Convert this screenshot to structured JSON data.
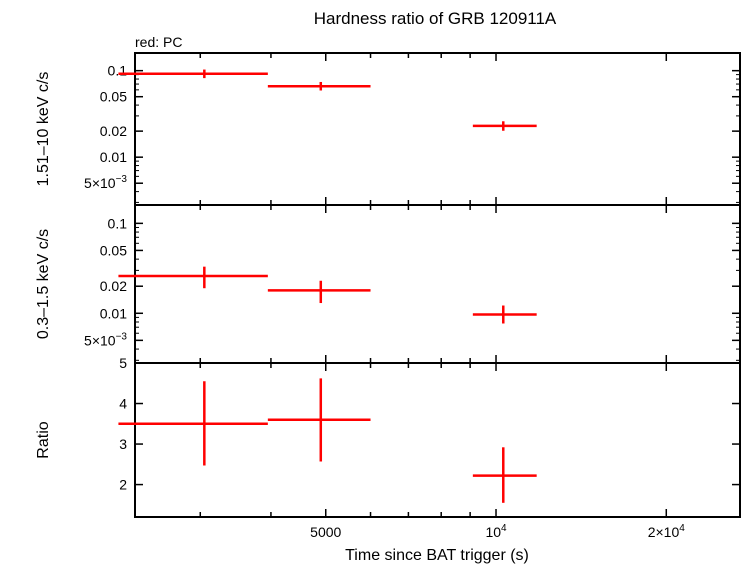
{
  "chart_data": {
    "type": "scatter",
    "title": "Hardness ratio of GRB 120911A",
    "subtitle": "red: PC",
    "xlabel": "Time since BAT trigger (s)",
    "xscale": "log",
    "xlim": [
      2300,
      27000
    ],
    "xticks": [
      {
        "value": 5000,
        "label": "5000"
      },
      {
        "value": 10000,
        "label": "10",
        "sup": "4"
      },
      {
        "value": 20000,
        "label": "2×10",
        "sup": "4"
      }
    ],
    "color": "#ff0000",
    "panels": [
      {
        "id": "hard",
        "ylabel": "1.51–10 keV c/s",
        "yscale": "log",
        "ylim": [
          0.0028,
          0.16
        ],
        "yticks": [
          {
            "value": 0.1,
            "label": "0.1"
          },
          {
            "value": 0.05,
            "label": "0.05"
          },
          {
            "value": 0.02,
            "label": "0.02"
          },
          {
            "value": 0.01,
            "label": "0.01"
          },
          {
            "value": 0.005,
            "label": "5×10",
            "sup": "−3"
          }
        ],
        "points": [
          {
            "x": 3050,
            "xlo": 2150,
            "xhi": 3950,
            "y": 0.092,
            "ylo": 0.082,
            "yhi": 0.103
          },
          {
            "x": 4900,
            "xlo": 3950,
            "xhi": 6000,
            "y": 0.066,
            "ylo": 0.059,
            "yhi": 0.074
          },
          {
            "x": 10300,
            "xlo": 9100,
            "xhi": 11800,
            "y": 0.023,
            "ylo": 0.0202,
            "yhi": 0.026
          }
        ]
      },
      {
        "id": "soft",
        "ylabel": "0.3–1.5 keV c/s",
        "yscale": "log",
        "ylim": [
          0.0028,
          0.16
        ],
        "yticks": [
          {
            "value": 0.1,
            "label": "0.1"
          },
          {
            "value": 0.05,
            "label": "0.05"
          },
          {
            "value": 0.02,
            "label": "0.02"
          },
          {
            "value": 0.01,
            "label": "0.01"
          },
          {
            "value": 0.005,
            "label": "5×10",
            "sup": "−3"
          }
        ],
        "points": [
          {
            "x": 3050,
            "xlo": 2150,
            "xhi": 3950,
            "y": 0.026,
            "ylo": 0.019,
            "yhi": 0.033
          },
          {
            "x": 4900,
            "xlo": 3950,
            "xhi": 6000,
            "y": 0.018,
            "ylo": 0.013,
            "yhi": 0.023
          },
          {
            "x": 10300,
            "xlo": 9100,
            "xhi": 11800,
            "y": 0.0097,
            "ylo": 0.0077,
            "yhi": 0.0122
          }
        ]
      },
      {
        "id": "ratio",
        "ylabel": "Ratio",
        "yscale": "linear",
        "ylim": [
          1.2,
          5.0
        ],
        "yticks": [
          {
            "value": 5,
            "label": "5"
          },
          {
            "value": 4,
            "label": "4"
          },
          {
            "value": 3,
            "label": "3"
          },
          {
            "value": 2,
            "label": "2"
          }
        ],
        "points": [
          {
            "x": 3050,
            "xlo": 2150,
            "xhi": 3950,
            "y": 3.5,
            "ylo": 2.47,
            "yhi": 4.55
          },
          {
            "x": 4900,
            "xlo": 3950,
            "xhi": 6000,
            "y": 3.6,
            "ylo": 2.57,
            "yhi": 4.62
          },
          {
            "x": 10300,
            "xlo": 9100,
            "xhi": 11800,
            "y": 2.22,
            "ylo": 1.55,
            "yhi": 2.92
          }
        ]
      }
    ]
  }
}
